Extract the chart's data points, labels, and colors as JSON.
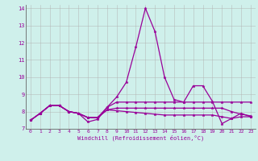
{
  "title": "",
  "xlabel": "Windchill (Refroidissement éolien,°C)",
  "background_color": "#cff0eb",
  "line_color": "#990099",
  "grid_color": "#b0b0b0",
  "xlim": [
    -0.5,
    23.5
  ],
  "ylim": [
    7,
    14.2
  ],
  "yticks": [
    7,
    8,
    9,
    10,
    11,
    12,
    13,
    14
  ],
  "xticks": [
    0,
    1,
    2,
    3,
    4,
    5,
    6,
    7,
    8,
    9,
    10,
    11,
    12,
    13,
    14,
    15,
    16,
    17,
    18,
    19,
    20,
    21,
    22,
    23
  ],
  "series": [
    [
      7.5,
      7.9,
      8.35,
      8.35,
      8.0,
      7.9,
      7.4,
      7.55,
      8.25,
      8.85,
      9.7,
      11.75,
      14.0,
      12.65,
      10.0,
      8.7,
      8.55,
      9.5,
      9.5,
      8.6,
      7.3,
      7.6,
      7.9,
      7.7
    ],
    [
      7.5,
      7.9,
      8.35,
      8.35,
      8.0,
      7.9,
      7.65,
      7.65,
      8.25,
      8.55,
      8.55,
      8.55,
      8.55,
      8.55,
      8.55,
      8.55,
      8.55,
      8.55,
      8.55,
      8.55,
      8.55,
      8.55,
      8.55,
      8.55
    ],
    [
      7.5,
      7.9,
      8.35,
      8.35,
      8.0,
      7.9,
      7.65,
      7.65,
      8.1,
      8.2,
      8.2,
      8.2,
      8.2,
      8.2,
      8.2,
      8.2,
      8.2,
      8.2,
      8.2,
      8.2,
      8.2,
      8.0,
      7.85,
      7.75
    ],
    [
      7.5,
      7.9,
      8.35,
      8.35,
      8.0,
      7.9,
      7.65,
      7.65,
      8.1,
      8.05,
      8.0,
      7.95,
      7.9,
      7.85,
      7.8,
      7.8,
      7.8,
      7.8,
      7.8,
      7.8,
      7.7,
      7.6,
      7.7,
      7.7
    ]
  ]
}
